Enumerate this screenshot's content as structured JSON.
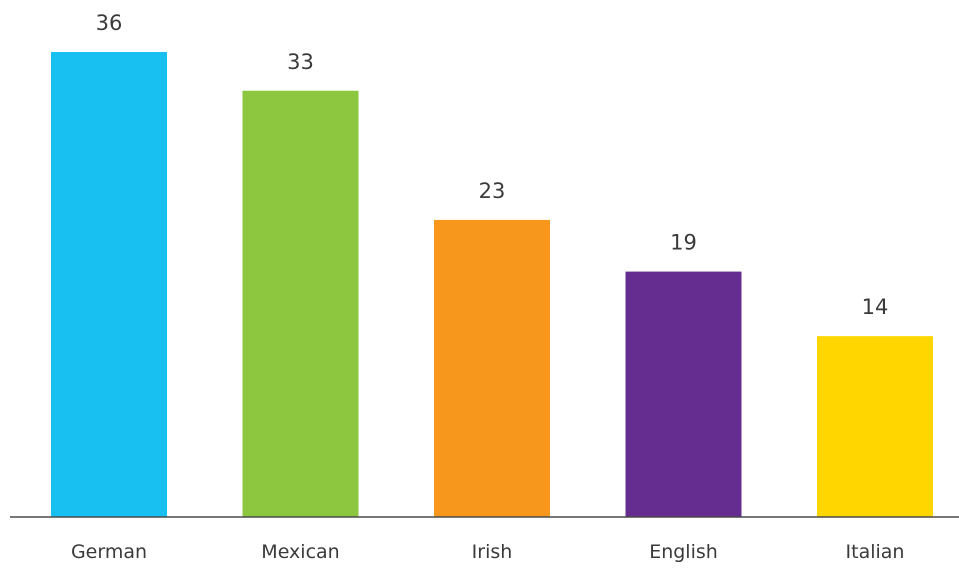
{
  "chart_data": {
    "type": "bar",
    "categories": [
      "German",
      "Mexican",
      "Irish",
      "English",
      "Italian"
    ],
    "values": [
      36,
      33,
      23,
      19,
      14
    ],
    "colors": [
      "#17c0f0",
      "#8dc63f",
      "#f7981d",
      "#662d91",
      "#ffd600"
    ],
    "axis_color": "#4a4a4a",
    "title": "",
    "xlabel": "",
    "ylabel": "",
    "ylim": [
      0,
      38
    ],
    "grid": false,
    "legend": "none"
  }
}
